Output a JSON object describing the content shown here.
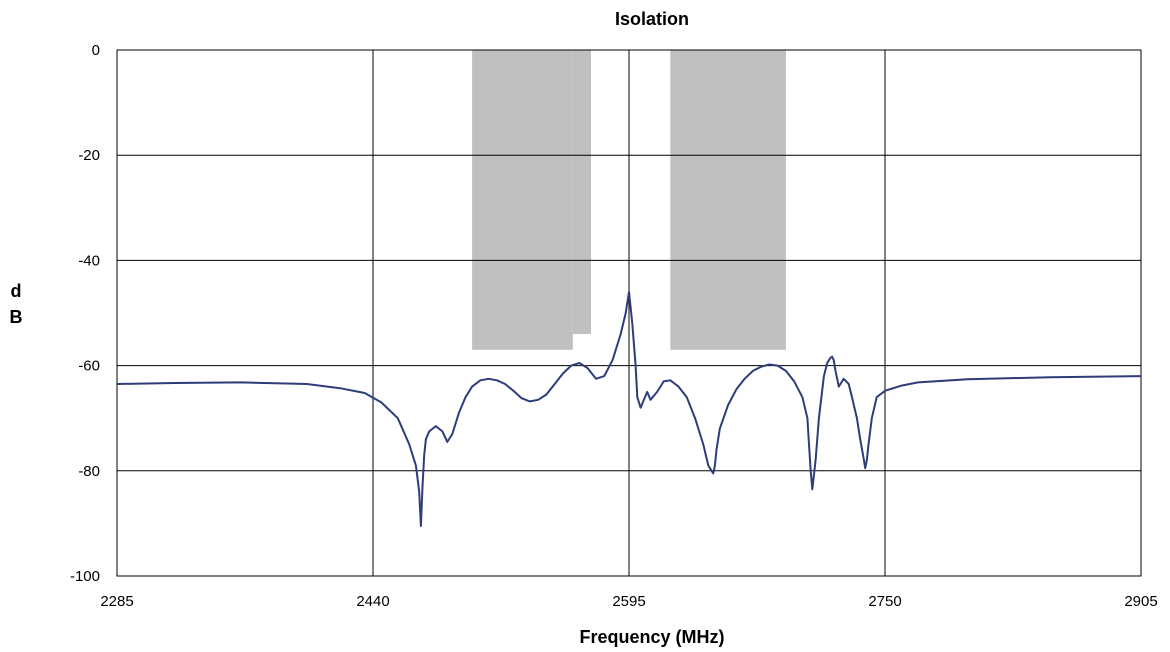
{
  "chart_data": {
    "type": "line",
    "title": "Isolation",
    "xlabel": "Frequency (MHz)",
    "ylabel": "dB",
    "xlim": [
      2285,
      2905
    ],
    "ylim": [
      -100,
      0
    ],
    "x_ticks": [
      2285,
      2440,
      2595,
      2750,
      2905
    ],
    "y_ticks": [
      0,
      -20,
      -40,
      -60,
      -80,
      -100
    ],
    "grid": true,
    "legend": "none",
    "colors": {
      "line": "#2e3d7a",
      "band": "#c0c0c0",
      "grid": "#000000"
    },
    "shaded_bands": [
      {
        "x_start": 2500,
        "x_end": 2561,
        "y_top": 0,
        "y_bottom": -57
      },
      {
        "x_start": 2561,
        "x_end": 2572,
        "y_top": 0,
        "y_bottom": -54
      },
      {
        "x_start": 2620,
        "x_end": 2690,
        "y_top": 0,
        "y_bottom": -57
      }
    ],
    "series": [
      {
        "x": [
          2285,
          2320,
          2360,
          2400,
          2420,
          2435,
          2445,
          2455,
          2462,
          2466,
          2468,
          2469,
          2470,
          2471,
          2472,
          2474,
          2478,
          2482,
          2485,
          2488,
          2492,
          2496,
          2500,
          2505,
          2510,
          2515,
          2520,
          2525,
          2530,
          2535,
          2540,
          2545,
          2550,
          2555,
          2560,
          2565,
          2570,
          2575,
          2580,
          2585,
          2590,
          2593,
          2595,
          2597,
          2599,
          2600,
          2602,
          2604,
          2606,
          2608,
          2612,
          2616,
          2620,
          2625,
          2630,
          2635,
          2640,
          2643,
          2645,
          2646,
          2647,
          2648,
          2650,
          2655,
          2660,
          2665,
          2670,
          2675,
          2680,
          2685,
          2690,
          2695,
          2700,
          2703,
          2704,
          2705,
          2706,
          2708,
          2710,
          2713,
          2715,
          2717,
          2718,
          2719,
          2720,
          2722,
          2725,
          2728,
          2730,
          2733,
          2735,
          2737,
          2738,
          2739,
          2740,
          2742,
          2745,
          2750,
          2760,
          2770,
          2800,
          2850,
          2905
        ],
        "y": [
          -63.5,
          -63.3,
          -63.2,
          -63.5,
          -64.3,
          -65.2,
          -67,
          -70,
          -75,
          -79,
          -84,
          -90.5,
          -83,
          -77,
          -74,
          -72.5,
          -71.5,
          -72.5,
          -74.5,
          -73,
          -69,
          -66,
          -64,
          -62.8,
          -62.5,
          -62.8,
          -63.5,
          -64.8,
          -66.2,
          -66.8,
          -66.5,
          -65.5,
          -63.5,
          -61.5,
          -60,
          -59.5,
          -60.5,
          -62.5,
          -62,
          -59,
          -54,
          -50,
          -46,
          -52,
          -60,
          -66,
          -68,
          -66.5,
          -65,
          -66.5,
          -65,
          -63,
          -62.8,
          -64,
          -66,
          -70,
          -75,
          -79,
          -80,
          -80.5,
          -79,
          -76,
          -72,
          -67.5,
          -64.5,
          -62.5,
          -61,
          -60.2,
          -59.8,
          -60,
          -61,
          -63,
          -66,
          -70,
          -75,
          -80,
          -83.5,
          -78,
          -70,
          -62,
          -59.5,
          -58.5,
          -58.3,
          -59,
          -61,
          -64,
          -62.5,
          -63.5,
          -66,
          -70,
          -74,
          -77.5,
          -79.5,
          -78,
          -75,
          -70,
          -66,
          -64.8,
          -63.8,
          -63.2,
          -62.6,
          -62.2,
          -62
        ]
      }
    ]
  }
}
